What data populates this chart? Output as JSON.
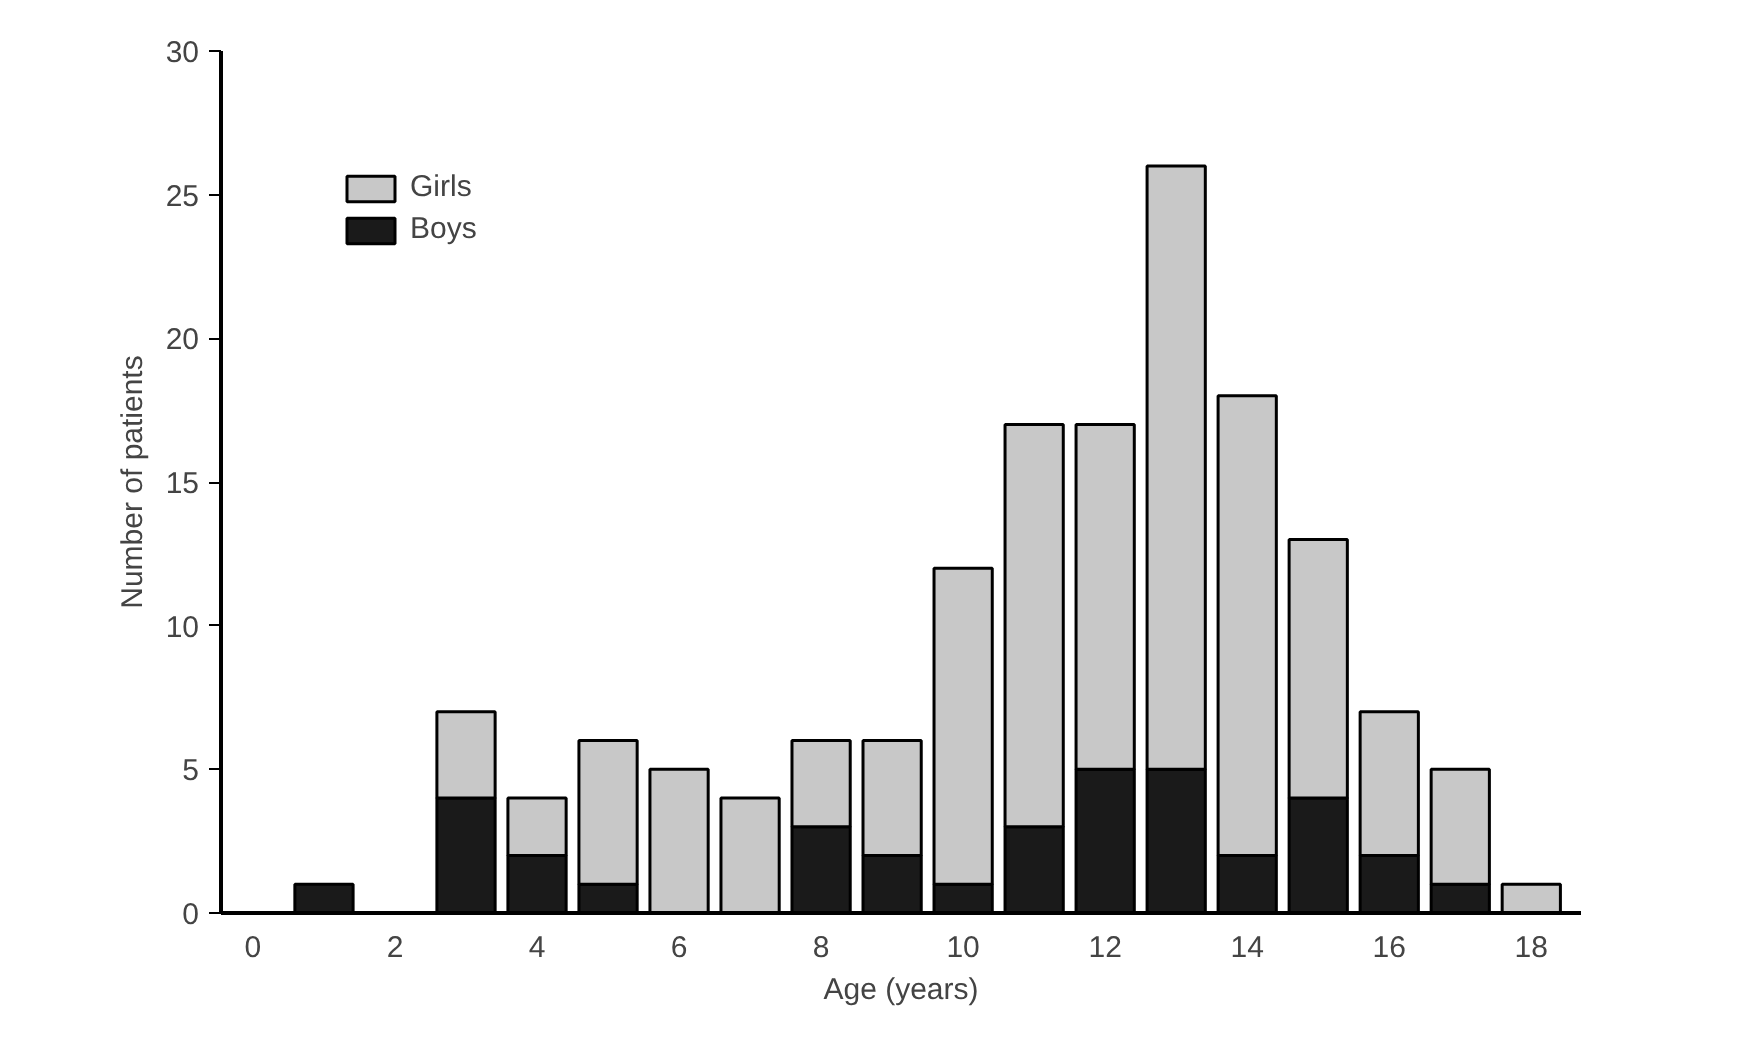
{
  "chart_data": {
    "type": "bar",
    "stacked": true,
    "xlabel": "Age (years)",
    "ylabel": "Number of patients",
    "x": [
      1,
      3,
      4,
      5,
      6,
      7,
      8,
      9,
      10,
      11,
      12,
      13,
      14,
      15,
      16,
      17,
      18
    ],
    "series": [
      {
        "name": "Boys",
        "color": "#1a1a1a",
        "values": [
          1,
          4,
          2,
          1,
          null,
          null,
          3,
          2,
          1,
          3,
          5,
          5,
          2,
          4,
          2,
          1,
          null
        ]
      },
      {
        "name": "Girls",
        "color": "#c8c8c8",
        "values": [
          null,
          3,
          2,
          5,
          5,
          4,
          3,
          4,
          11,
          14,
          12,
          21,
          16,
          9,
          5,
          4,
          1
        ]
      }
    ],
    "xlim": [
      -0.45,
      18.7
    ],
    "xticks": [
      0,
      2,
      4,
      6,
      8,
      10,
      12,
      14,
      16,
      18
    ],
    "ylim": [
      0,
      30
    ],
    "yticks": [
      0,
      5,
      10,
      15,
      20,
      25,
      30
    ],
    "grid": false,
    "legend": "top left"
  }
}
